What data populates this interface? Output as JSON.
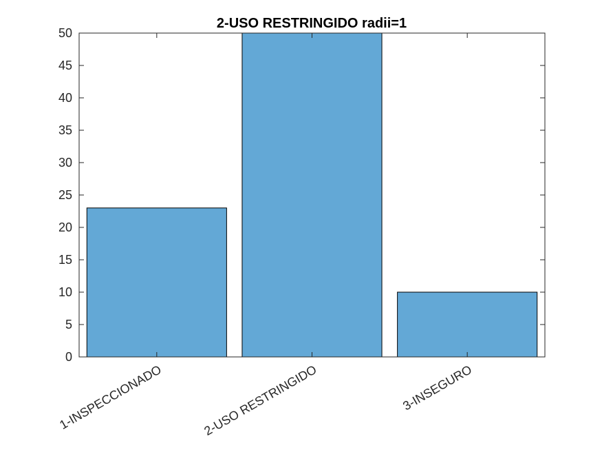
{
  "chart_data": {
    "type": "bar",
    "title": "2-USO RESTRINGIDO radii=1",
    "xlabel": "",
    "ylabel": "",
    "categories": [
      "1-INSPECCIONADO",
      "2-USO RESTRINGIDO",
      "3-INSEGURO"
    ],
    "values": [
      23,
      50,
      10
    ],
    "ylim": [
      0,
      50
    ],
    "yticks": [
      0,
      5,
      10,
      15,
      20,
      25,
      30,
      35,
      40,
      45,
      50
    ],
    "grid": false,
    "legend": "none",
    "colors": {
      "bar_fill": "#63A8D6",
      "bar_edge": "#000000",
      "axis": "#262626",
      "background": "#FFFFFF"
    }
  }
}
